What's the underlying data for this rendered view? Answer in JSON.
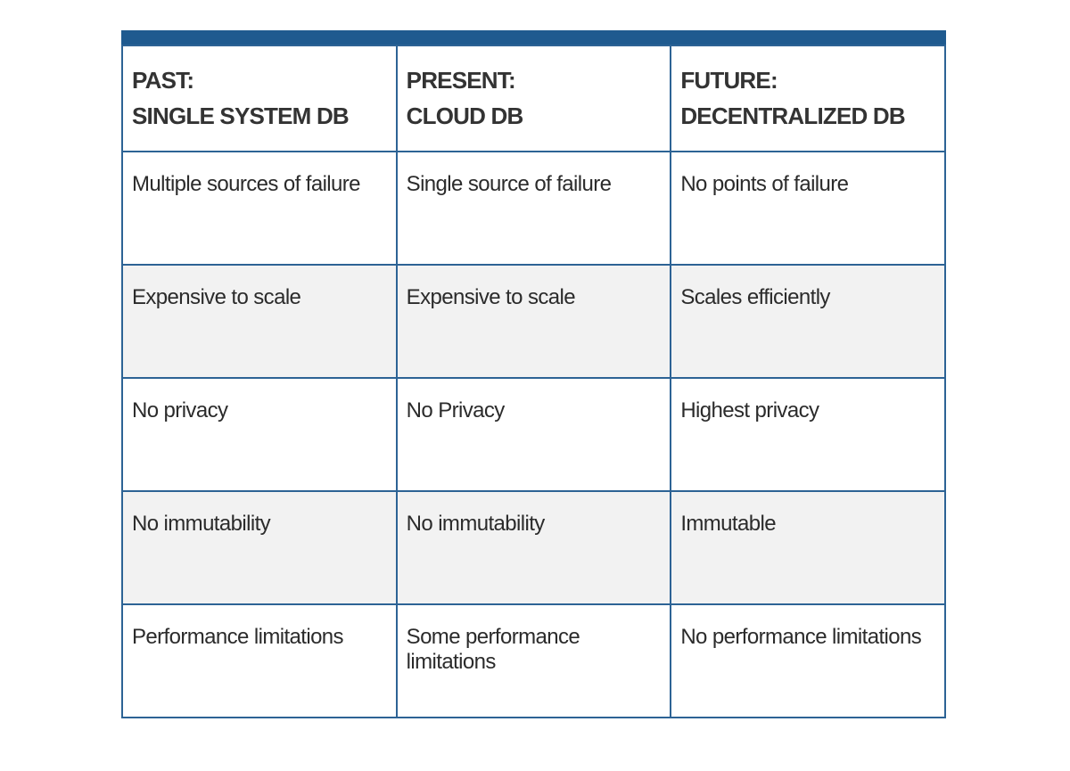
{
  "table": {
    "header": [
      [
        "PAST:",
        "SINGLE SYSTEM DB"
      ],
      [
        "PRESENT:",
        "CLOUD DB"
      ],
      [
        "FUTURE:",
        "DECENTRALIZED DB"
      ]
    ],
    "rows": [
      [
        "Multiple sources of failure",
        "Single source of failure",
        "No points of failure"
      ],
      [
        "Expensive to scale",
        "Expensive to scale",
        "Scales efficiently"
      ],
      [
        "No privacy",
        "No Privacy",
        "Highest privacy"
      ],
      [
        "No immutability",
        "No immutability",
        "Immutable"
      ],
      [
        "Performance limitations",
        "Some performance limitations",
        "No performance limitations"
      ]
    ]
  }
}
